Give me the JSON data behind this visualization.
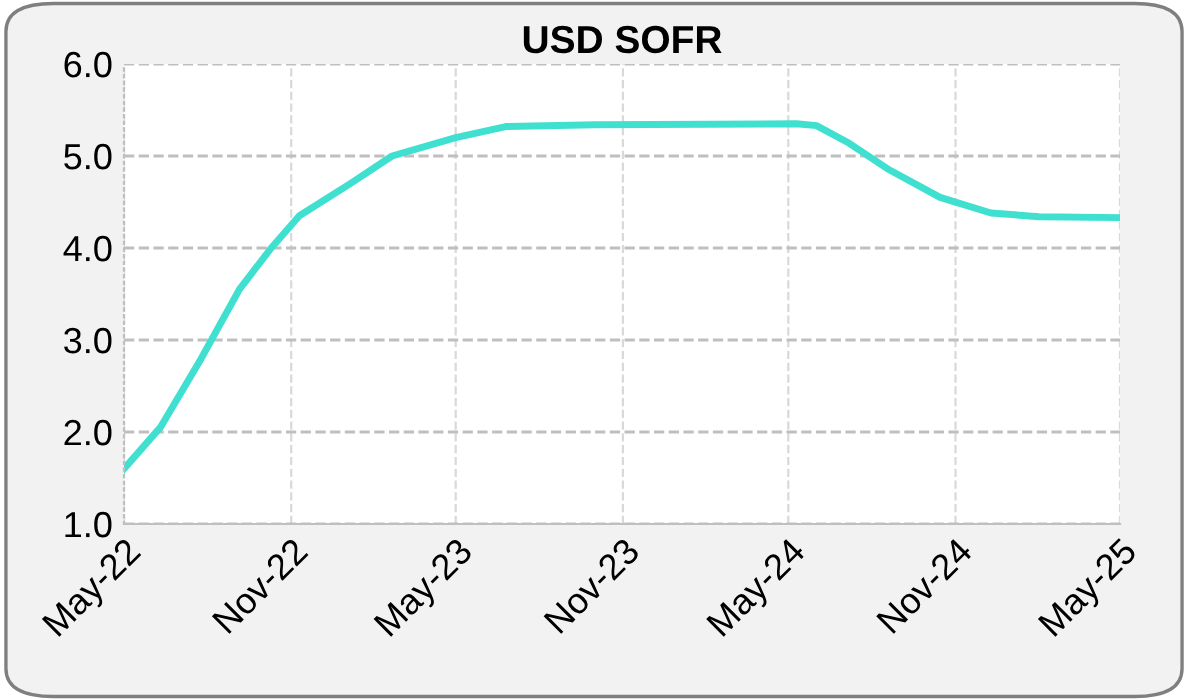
{
  "chart_data": {
    "type": "line",
    "title": "USD SOFR",
    "x": [
      "2022-05-01",
      "2022-06-10",
      "2022-07-25",
      "2022-09-05",
      "2022-10-10",
      "2022-11-10",
      "2023-01-05",
      "2023-02-20",
      "2023-05-01",
      "2023-06-25",
      "2023-10-01",
      "2024-05-10",
      "2024-06-01",
      "2024-07-05",
      "2024-08-20",
      "2024-10-15",
      "2024-12-10",
      "2025-02-01",
      "2025-05-01"
    ],
    "series": [
      {
        "color": "#40e0d0",
        "values": [
          1.6,
          2.05,
          2.8,
          3.55,
          4.0,
          4.35,
          4.7,
          5.0,
          5.2,
          5.32,
          5.34,
          5.35,
          5.33,
          5.15,
          4.85,
          4.55,
          4.38,
          4.34,
          4.33
        ]
      }
    ],
    "xlim": [
      "2022-05-01",
      "2025-05-01"
    ],
    "xticks": [
      {
        "value": "2022-05-01",
        "label": "May-22"
      },
      {
        "value": "2022-11-01",
        "label": "Nov-22"
      },
      {
        "value": "2023-05-01",
        "label": "May-23"
      },
      {
        "value": "2023-11-01",
        "label": "Nov-23"
      },
      {
        "value": "2024-05-01",
        "label": "May-24"
      },
      {
        "value": "2024-11-01",
        "label": "Nov-24"
      },
      {
        "value": "2025-05-01",
        "label": "May-25"
      }
    ],
    "ylim": [
      1,
      6
    ],
    "yticks": [
      {
        "value": 1,
        "label": "1.0"
      },
      {
        "value": 2,
        "label": "2.0"
      },
      {
        "value": 3,
        "label": "3.0"
      },
      {
        "value": 4,
        "label": "4.0"
      },
      {
        "value": 5,
        "label": "5.0"
      },
      {
        "value": 6,
        "label": "6.0"
      }
    ],
    "grid": true,
    "legend": false,
    "marker": "none",
    "line_style": "solid"
  }
}
